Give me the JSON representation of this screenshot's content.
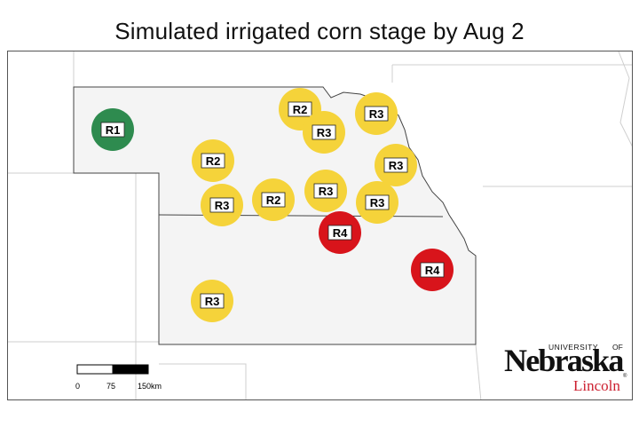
{
  "title": "Simulated irrigated corn stage by Aug 2",
  "legend_colors": {
    "R1": "#2e8b4f",
    "R2": "#f5d33a",
    "R3": "#f5d33a",
    "R4": "#d8141b"
  },
  "sites": [
    {
      "stage": "R1",
      "color": "#2e8b4f"
    },
    {
      "stage": "R2",
      "color": "#f5d33a"
    },
    {
      "stage": "R3",
      "color": "#f5d33a"
    },
    {
      "stage": "R3",
      "color": "#f5d33a"
    },
    {
      "stage": "R3",
      "color": "#f5d33a"
    },
    {
      "stage": "R2",
      "color": "#f5d33a"
    },
    {
      "stage": "R3",
      "color": "#f5d33a"
    },
    {
      "stage": "R2",
      "color": "#f5d33a"
    },
    {
      "stage": "R3",
      "color": "#f5d33a"
    },
    {
      "stage": "R3",
      "color": "#f5d33a"
    },
    {
      "stage": "R4",
      "color": "#d8141b"
    },
    {
      "stage": "R4",
      "color": "#d8141b"
    },
    {
      "stage": "R3",
      "color": "#f5d33a"
    }
  ],
  "scalebar": {
    "labels": [
      "0",
      "75",
      "150km"
    ]
  },
  "logo": {
    "university": "UNIVERSITY",
    "of": "OF",
    "name": "Nebraska",
    "campus": "Lincoln",
    "registered": "®"
  }
}
